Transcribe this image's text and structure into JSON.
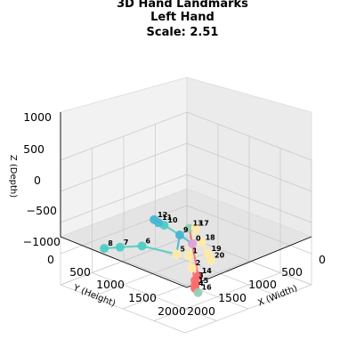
{
  "chart_data": {
    "type": "scatter",
    "projection": "3d",
    "title_lines": [
      "3D Hand Landmarks",
      "Left Hand",
      "Scale: 2.51"
    ],
    "xlabel": "X (Width)",
    "ylabel": "Y (Height)",
    "zlabel": "Z (Depth)",
    "x_ticks": [
      "0",
      "500",
      "1000",
      "1500",
      "2000"
    ],
    "y_ticks": [
      "0",
      "500",
      "1000",
      "1500",
      "2000"
    ],
    "z_ticks": [
      "1000",
      "500",
      "0",
      "−500",
      "−1000"
    ],
    "xlim": [
      0,
      2000
    ],
    "ylim": [
      0,
      2000
    ],
    "zlim": [
      -1000,
      1000
    ],
    "grid": true,
    "colors": {
      "thumb": "#ff6b6b",
      "index": "#ffeaa7",
      "middle": "#96ceb4",
      "ring": "#45b7d1",
      "pinky": "#4ecdc4",
      "wrist": "#dda0dd"
    },
    "landmarks": [
      {
        "label": "0",
        "x": 1100,
        "y": 1000,
        "z": -300,
        "finger": "wrist"
      },
      {
        "label": "1",
        "x": 1200,
        "y": 1150,
        "z": -400,
        "finger": "index"
      },
      {
        "label": "2",
        "x": 1350,
        "y": 1250,
        "z": -500,
        "finger": "index"
      },
      {
        "label": "3",
        "x": 1500,
        "y": 1350,
        "z": -600,
        "finger": "thumb"
      },
      {
        "label": "4",
        "x": 1600,
        "y": 1450,
        "z": -650,
        "finger": "thumb"
      },
      {
        "label": "5",
        "x": 1000,
        "y": 1150,
        "z": -450,
        "finger": "index"
      },
      {
        "label": "6",
        "x": 750,
        "y": 1450,
        "z": -300,
        "finger": "pinky"
      },
      {
        "label": "7",
        "x": 600,
        "y": 1650,
        "z": -300,
        "finger": "pinky"
      },
      {
        "label": "8",
        "x": 500,
        "y": 1800,
        "z": -300,
        "finger": "pinky"
      },
      {
        "label": "9",
        "x": 950,
        "y": 1050,
        "z": -200,
        "finger": "ring"
      },
      {
        "label": "10",
        "x": 750,
        "y": 1100,
        "z": -100,
        "finger": "pinky"
      },
      {
        "label": "11",
        "x": 680,
        "y": 1120,
        "z": -80,
        "finger": "ring"
      },
      {
        "label": "12",
        "x": 620,
        "y": 1130,
        "z": -50,
        "finger": "ring"
      },
      {
        "label": "13",
        "x": 950,
        "y": 900,
        "z": -150,
        "finger": "middle"
      },
      {
        "label": "14",
        "x": 1500,
        "y": 1300,
        "z": -550,
        "finger": "thumb"
      },
      {
        "label": "15",
        "x": 1550,
        "y": 1400,
        "z": -650,
        "finger": "thumb"
      },
      {
        "label": "16",
        "x": 1650,
        "y": 1450,
        "z": -700,
        "finger": "middle"
      },
      {
        "label": "17",
        "x": 1000,
        "y": 850,
        "z": -150,
        "finger": "index"
      },
      {
        "label": "18",
        "x": 1150,
        "y": 900,
        "z": -300,
        "finger": "index"
      },
      {
        "label": "19",
        "x": 1300,
        "y": 950,
        "z": -400,
        "finger": "index"
      },
      {
        "label": "20",
        "x": 1400,
        "y": 1000,
        "z": -450,
        "finger": "index"
      }
    ],
    "connections": [
      [
        0,
        1
      ],
      [
        1,
        2
      ],
      [
        2,
        3
      ],
      [
        3,
        4
      ],
      [
        0,
        5
      ],
      [
        5,
        6
      ],
      [
        6,
        7
      ],
      [
        7,
        8
      ],
      [
        0,
        9
      ],
      [
        9,
        10
      ],
      [
        10,
        11
      ],
      [
        11,
        12
      ],
      [
        0,
        13
      ],
      [
        13,
        14
      ],
      [
        14,
        15
      ],
      [
        15,
        16
      ],
      [
        0,
        17
      ],
      [
        17,
        18
      ],
      [
        18,
        19
      ],
      [
        19,
        20
      ],
      [
        5,
        9
      ],
      [
        9,
        13
      ],
      [
        13,
        17
      ]
    ]
  }
}
